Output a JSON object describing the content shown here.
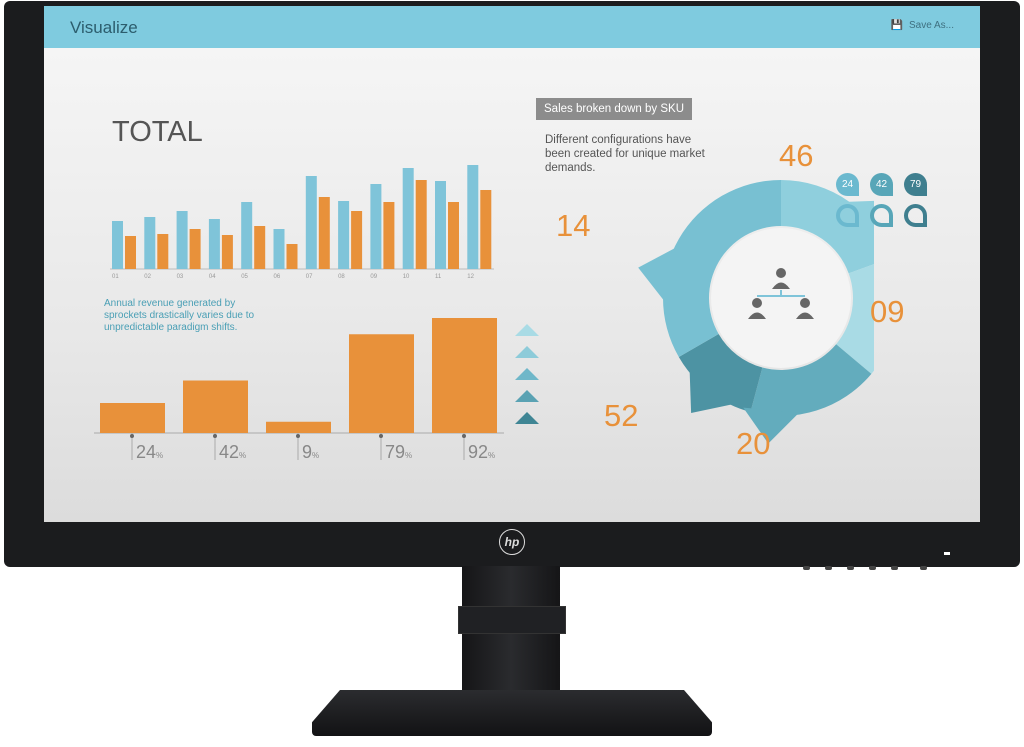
{
  "header": {
    "title": "Visualize",
    "save_label": "Save As..."
  },
  "total_title": "TOTAL",
  "monthly_chart": {
    "type": "bar",
    "categories": [
      "01",
      "02",
      "03",
      "04",
      "05",
      "06",
      "07",
      "08",
      "09",
      "10",
      "11",
      "12"
    ],
    "series": [
      {
        "color": "#7fc4d9",
        "values": [
          48,
          52,
          58,
          50,
          67,
          40,
          93,
          68,
          85,
          101,
          88,
          104
        ]
      },
      {
        "color": "#e8913a",
        "values": [
          33,
          35,
          40,
          34,
          43,
          25,
          72,
          58,
          67,
          89,
          67,
          79
        ]
      }
    ]
  },
  "annotation": "Annual revenue generated by sprockets drastically varies due to unpredictable paradigm shifts.",
  "percent_chart": {
    "type": "bar",
    "values": [
      24,
      42,
      9,
      79,
      92
    ],
    "labels": [
      "24",
      "42",
      "9",
      "79",
      "92"
    ],
    "unit": "%",
    "color": "#e8913a"
  },
  "sku": {
    "badge": "Sales broken down by SKU",
    "description": "Different configurations have been created for unique market demands.",
    "numbers": [
      "46",
      "09",
      "20",
      "52",
      "14"
    ],
    "drops": [
      {
        "label": "24",
        "unit": "%",
        "color": "#6bb9cf"
      },
      {
        "label": "42",
        "unit": "%",
        "color": "#58a6b8"
      },
      {
        "label": "79",
        "unit": "%",
        "color": "#3f7f8f"
      }
    ]
  },
  "brand": "hp",
  "colors": {
    "header": "#7fcbdf",
    "orange": "#e8913a",
    "teal": "#6bb9cf",
    "bezel": "#1b1c1e"
  }
}
